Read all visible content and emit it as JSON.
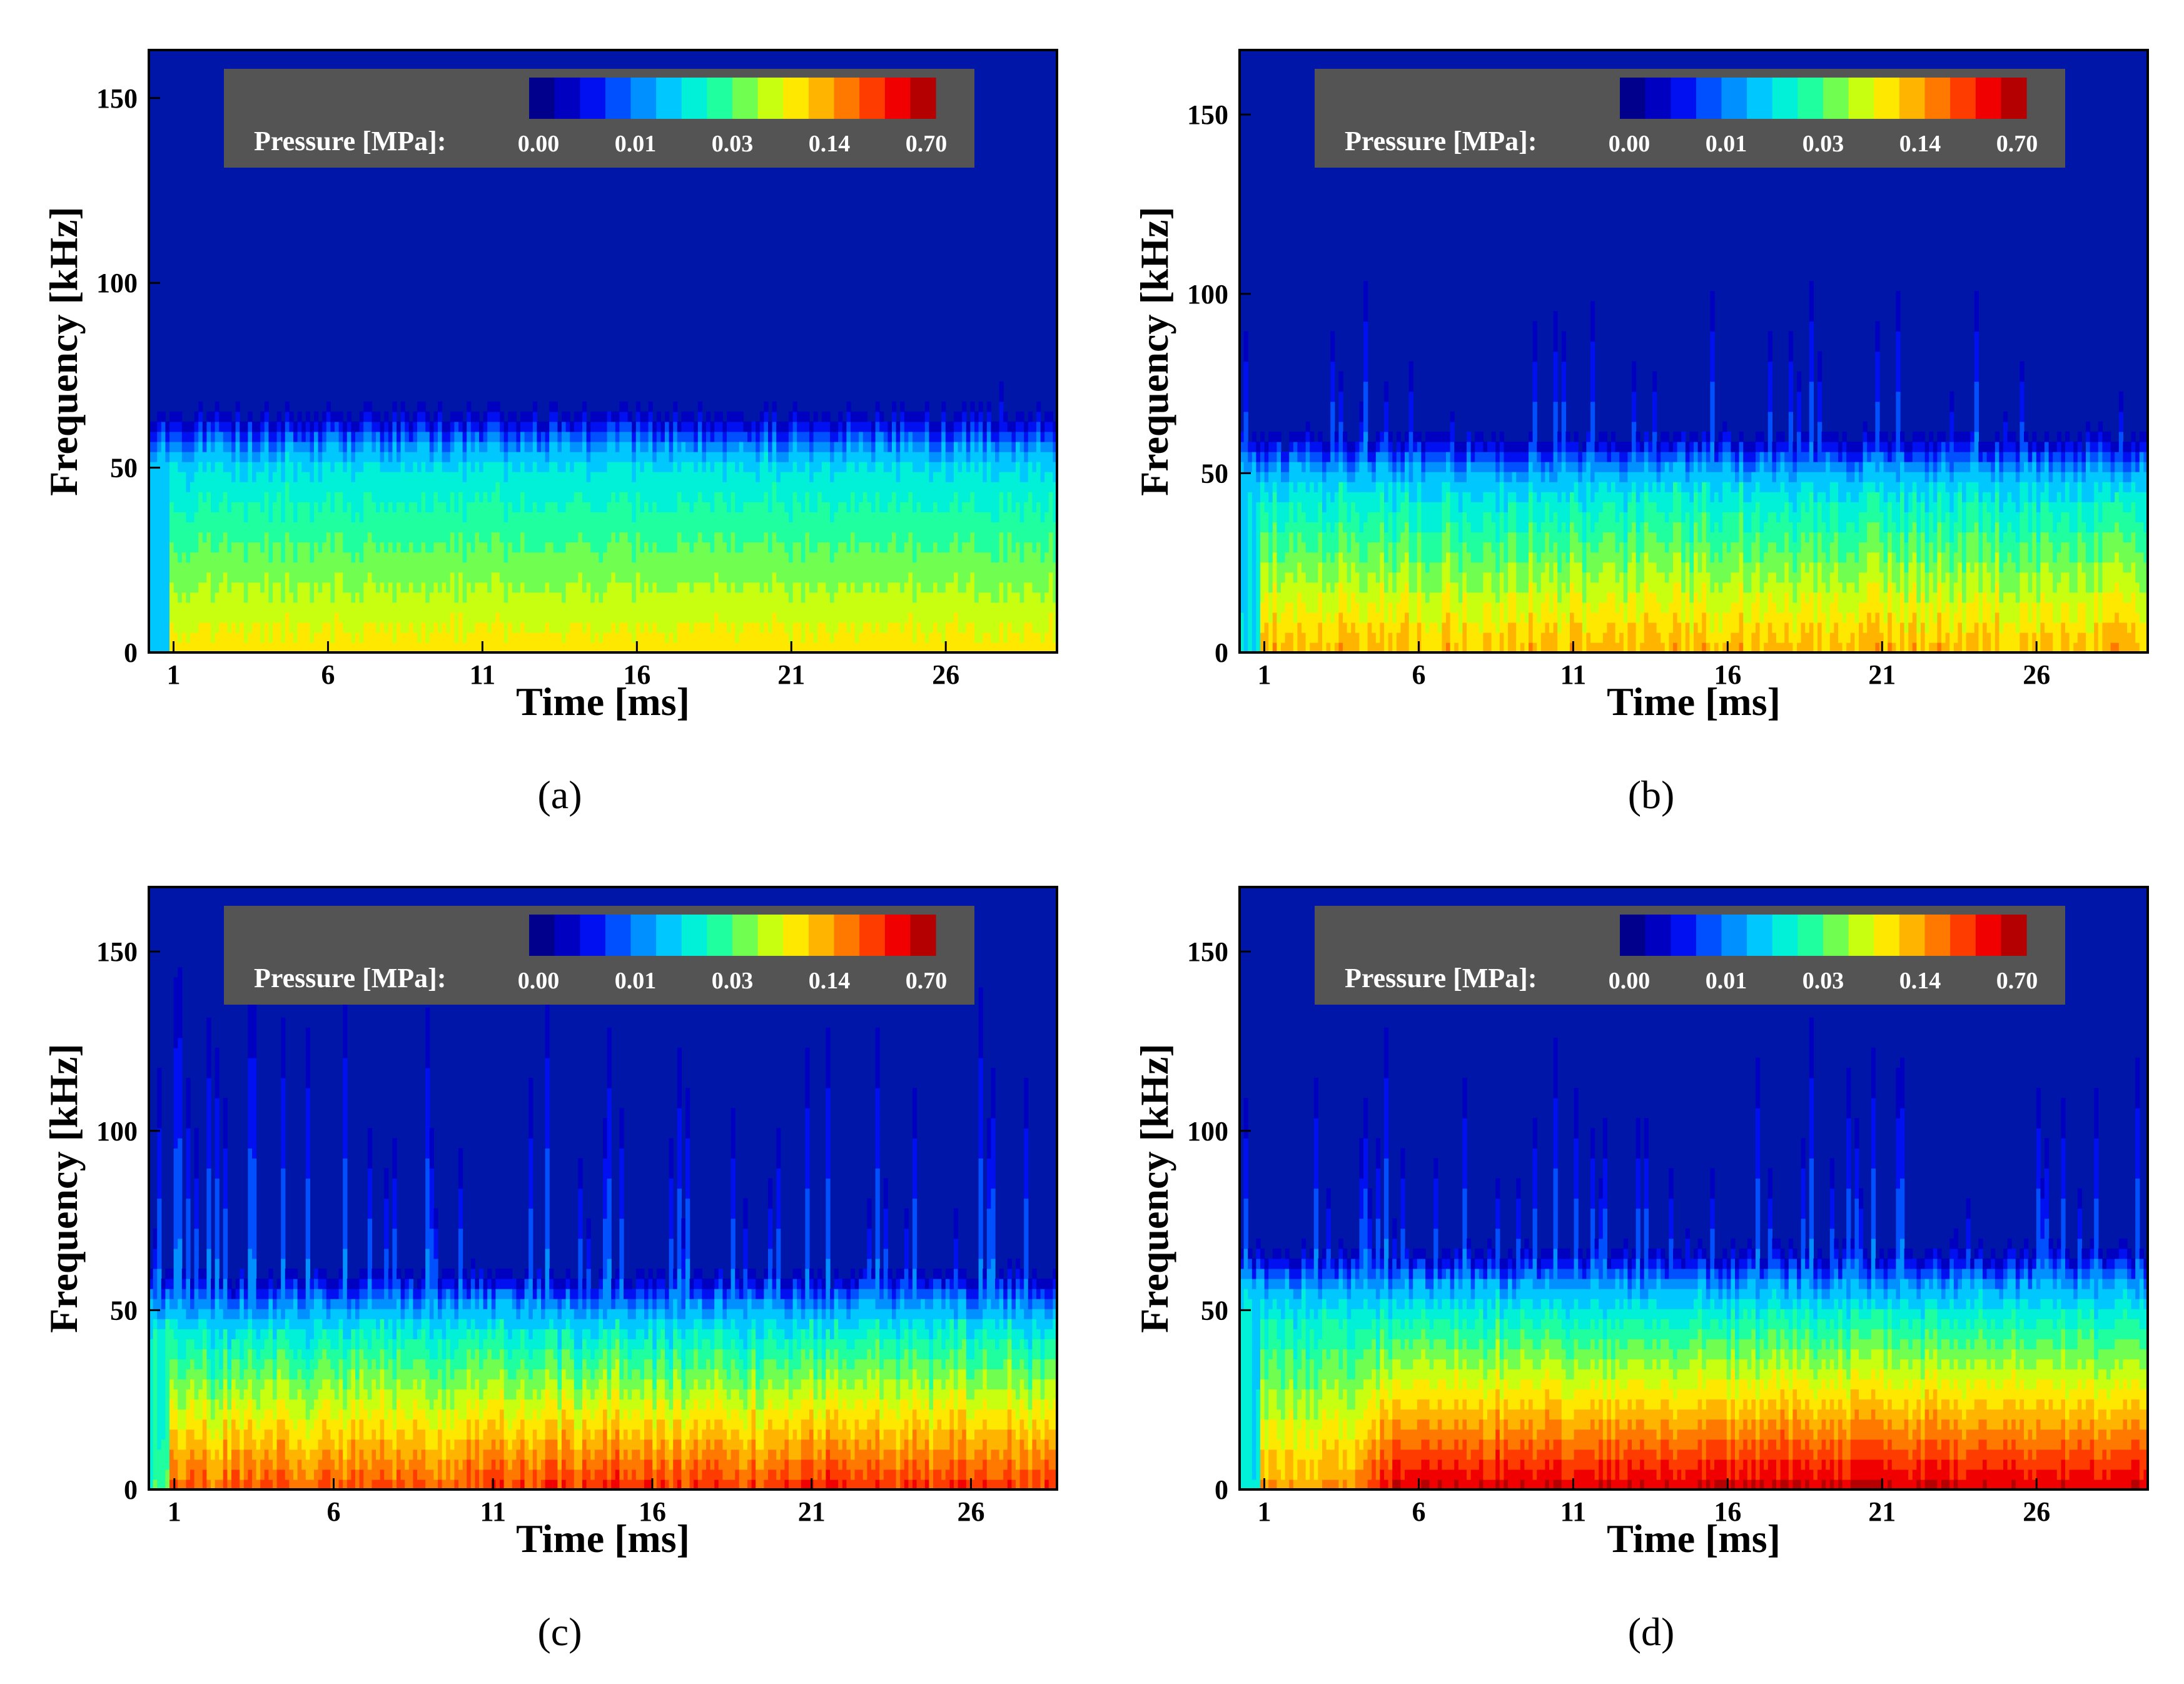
{
  "chart_data": [
    {
      "type": "heatmap",
      "panel_label": "(a)",
      "xlabel": "Time [ms]",
      "ylabel": "Frequency [kHz]",
      "x_ticks": [
        "1",
        "6",
        "11",
        "16",
        "21",
        "26"
      ],
      "y_ticks": [
        "0",
        "50",
        "100",
        "150"
      ],
      "xlim": [
        0.2,
        29.6
      ],
      "ylim": [
        0,
        163
      ],
      "colorbar": {
        "label": "Pressure [MPa]:",
        "ticks": [
          "0.00",
          "0.01",
          "0.03",
          "0.14",
          "0.70"
        ]
      },
      "profile": {
        "base_level": 0.66,
        "edge_khz": 50,
        "edge_drop": 0.2,
        "spikiness": 0.03,
        "onset_ms": 0.6,
        "late_onset_ms": null,
        "late_level": null,
        "noise": 0.02
      }
    },
    {
      "type": "heatmap",
      "panel_label": "(b)",
      "xlabel": "Time [ms]",
      "ylabel": "Frequency [kHz]",
      "x_ticks": [
        "1",
        "6",
        "11",
        "16",
        "21",
        "26"
      ],
      "y_ticks": [
        "0",
        "50",
        "100",
        "150"
      ],
      "xlim": [
        0.2,
        29.6
      ],
      "ylim": [
        0,
        168
      ],
      "colorbar": {
        "label": "Pressure [MPa]:",
        "ticks": [
          "0.00",
          "0.01",
          "0.03",
          "0.14",
          "0.70"
        ]
      },
      "profile": {
        "base_level": 0.72,
        "edge_khz": 46,
        "edge_drop": 0.25,
        "spikiness": 0.35,
        "onset_ms": 0.6,
        "late_onset_ms": null,
        "late_level": null,
        "noise": 0.05
      }
    },
    {
      "type": "heatmap",
      "panel_label": "(c)",
      "xlabel": "Time [ms]",
      "ylabel": "Frequency [kHz]",
      "x_ticks": [
        "1",
        "6",
        "11",
        "16",
        "21",
        "26"
      ],
      "y_ticks": [
        "0",
        "50",
        "100",
        "150"
      ],
      "xlim": [
        0.2,
        28.7
      ],
      "ylim": [
        0,
        168
      ],
      "colorbar": {
        "label": "Pressure [MPa]:",
        "ticks": [
          "0.00",
          "0.01",
          "0.03",
          "0.14",
          "0.70"
        ]
      },
      "profile": {
        "base_level": 0.82,
        "edge_khz": 46,
        "edge_drop": 0.25,
        "spikiness": 0.7,
        "onset_ms": 0.6,
        "late_onset_ms": 10,
        "late_level": 0.86,
        "noise": 0.06
      }
    },
    {
      "type": "heatmap",
      "panel_label": "(d)",
      "xlabel": "Time [ms]",
      "ylabel": "Frequency [kHz]",
      "x_ticks": [
        "1",
        "6",
        "11",
        "16",
        "21",
        "26"
      ],
      "y_ticks": [
        "0",
        "50",
        "100",
        "150"
      ],
      "xlim": [
        0.2,
        29.6
      ],
      "ylim": [
        0,
        168
      ],
      "colorbar": {
        "label": "Pressure [MPa]:",
        "ticks": [
          "0.00",
          "0.01",
          "0.03",
          "0.14",
          "0.70"
        ]
      },
      "profile": {
        "base_level": 0.74,
        "edge_khz": 52,
        "edge_drop": 0.2,
        "spikiness": 0.55,
        "onset_ms": 0.6,
        "late_onset_ms": 3.7,
        "late_level": 0.94,
        "noise": 0.04
      }
    }
  ],
  "colors": {
    "background_field": "#0016a8",
    "legend_box": "#545454",
    "colormap": [
      "#00008c",
      "#0000c0",
      "#0010f0",
      "#0050ff",
      "#0090ff",
      "#00c8ff",
      "#00f0d8",
      "#20ffa0",
      "#70ff50",
      "#c8ff10",
      "#ffe800",
      "#ffb400",
      "#ff7800",
      "#ff3c00",
      "#f00000",
      "#b40000"
    ]
  }
}
